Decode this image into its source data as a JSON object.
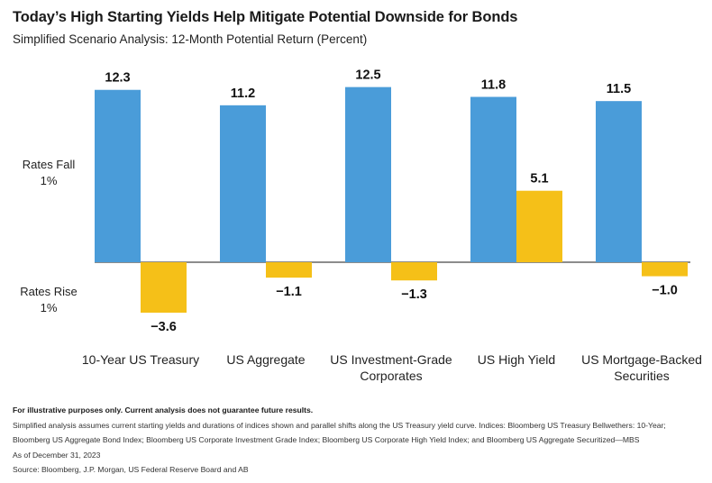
{
  "title": "Today’s High Starting Yields Help Mitigate Potential Downside for Bonds",
  "subtitle": "Simplified Scenario Analysis: 12-Month Potential Return (Percent)",
  "chart_data": {
    "type": "bar",
    "categories": [
      [
        "10-Year US Treasury"
      ],
      [
        "US Aggregate"
      ],
      [
        "US Investment-Grade",
        "Corporates"
      ],
      [
        "US High Yield"
      ],
      [
        "US Mortgage-Backed",
        "Securities"
      ]
    ],
    "series": [
      {
        "name": "Rates Fall 1%",
        "values": [
          12.3,
          11.2,
          12.5,
          11.8,
          11.5
        ],
        "labels": [
          "12.3",
          "11.2",
          "12.5",
          "11.8",
          "11.5"
        ]
      },
      {
        "name": "Rates Rise 1%",
        "values": [
          -3.6,
          -1.1,
          -1.3,
          5.1,
          -1.0
        ],
        "labels": [
          "−3.6",
          "−1.1",
          "−1.3",
          "5.1",
          "−1.0"
        ]
      }
    ],
    "row_labels": [
      [
        "Rates Fall",
        "1%"
      ],
      [
        "Rates Rise",
        "1%"
      ]
    ],
    "colors": [
      "#4a9cd9",
      "#f5c018"
    ],
    "grid": false,
    "legend": "none"
  },
  "notes": {
    "disclaimer": "For illustrative purposes only. Current analysis does not guarantee future results.",
    "line1": "Simplified analysis assumes current starting yields and durations of indices shown and parallel shifts along the US Treasury yield curve. Indices: Bloomberg US Treasury Bellwethers: 10-Year;",
    "line2": "Bloomberg US Aggregate Bond Index; Bloomberg US Corporate Investment Grade Index; Bloomberg US Corporate High Yield Index; and Bloomberg US Aggregate Securitized—MBS",
    "asof": "As of December 31, 2023",
    "source": "Source: Bloomberg, J.P. Morgan, US Federal Reserve Board and AB"
  }
}
